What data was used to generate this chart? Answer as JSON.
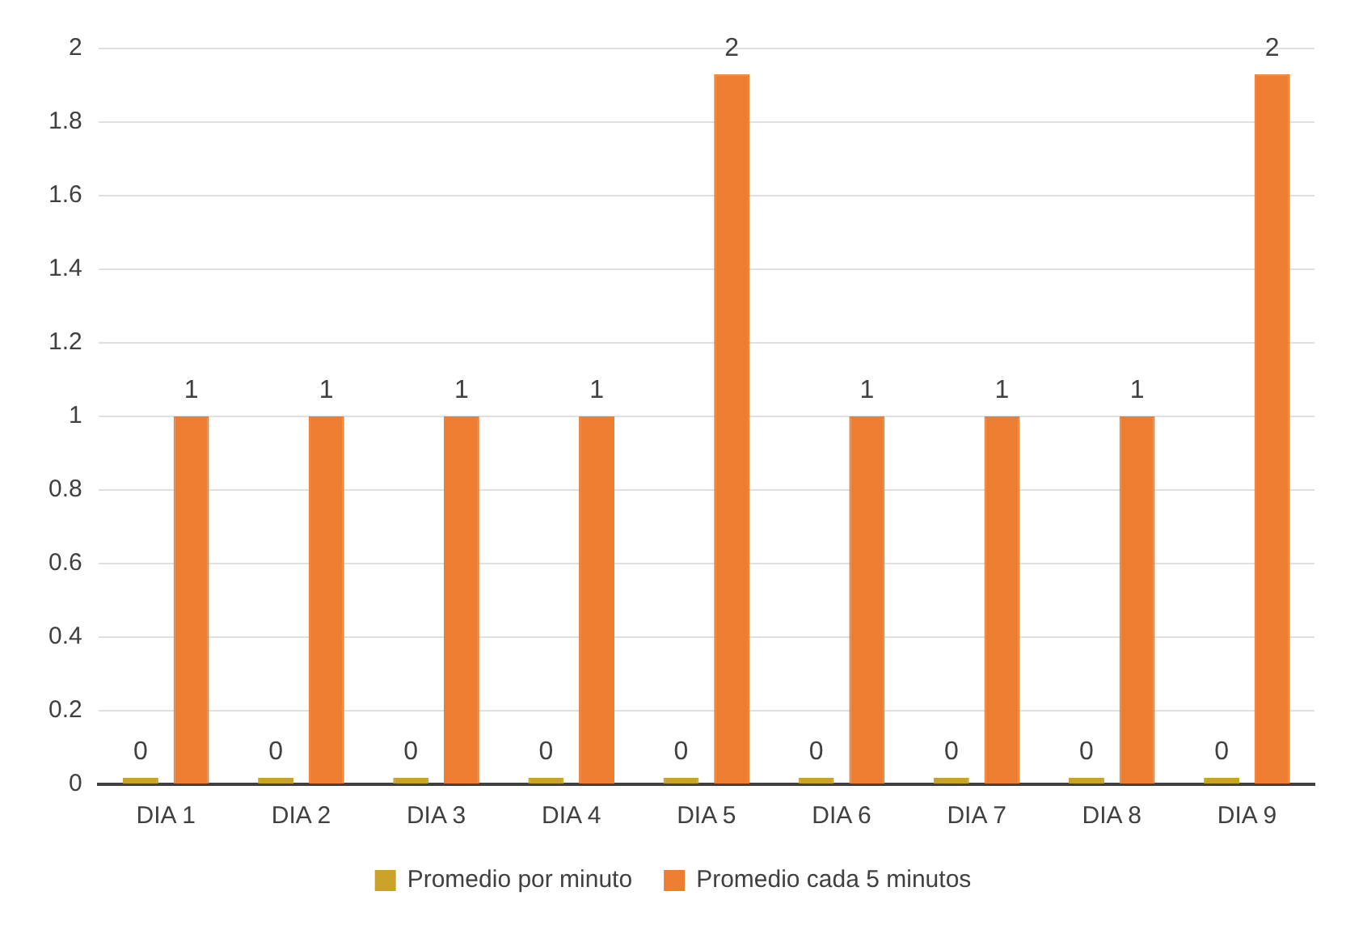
{
  "chart_data": {
    "type": "bar",
    "categories": [
      "DIA 1",
      "DIA 2",
      "DIA 3",
      "DIA 4",
      "DIA 5",
      "DIA 6",
      "DIA 7",
      "DIA 8",
      "DIA 9"
    ],
    "series": [
      {
        "name": "Promedio por minuto",
        "color": "#c9a227",
        "values": [
          0,
          0,
          0,
          0,
          0,
          0,
          0,
          0,
          0
        ],
        "value_labels": [
          "0",
          "0",
          "0",
          "0",
          "0",
          "0",
          "0",
          "0",
          "0"
        ]
      },
      {
        "name": "Promedio cada 5 minutos",
        "color": "#ed7d31",
        "values": [
          1,
          1,
          1,
          1,
          1.93,
          1,
          1,
          1,
          1.93
        ],
        "value_labels": [
          "1",
          "1",
          "1",
          "1",
          "2",
          "1",
          "1",
          "1",
          "2"
        ]
      }
    ],
    "ylim": [
      0,
      2
    ],
    "yticks": [
      0,
      0.2,
      0.4,
      0.6,
      0.8,
      1,
      1.2,
      1.4,
      1.6,
      1.8,
      2
    ],
    "grid": "y",
    "legend": "bottom"
  }
}
